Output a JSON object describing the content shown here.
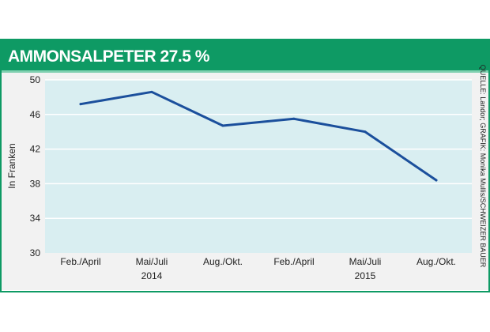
{
  "colors": {
    "header_bg": "#0e9a64",
    "header_accent": "#7fd0b0",
    "header_text": "#ffffff",
    "plot_bg": "#d9eef1",
    "panel_bg": "#f2f2f2",
    "border": "#0e9a64",
    "grid": "#ffffff",
    "line": "#1b4f9c"
  },
  "source_note": "QUELLE: Landor; GRAFIK: Monika Mullis/SCHWEIZER BAUER",
  "chart_data": {
    "type": "line",
    "title": "AMMONSALPETER 27.5 %",
    "ylabel": "In Franken",
    "xlabel": "",
    "ylim": [
      30,
      50
    ],
    "yticks": [
      30,
      34,
      38,
      42,
      46,
      50
    ],
    "grid": true,
    "categories": [
      "Feb./April",
      "Mai/Juli",
      "Aug./Okt.",
      "Feb./April",
      "Mai/Juli",
      "Aug./Okt."
    ],
    "groups": [
      {
        "label": "2014",
        "center_index": 1
      },
      {
        "label": "2015",
        "center_index": 4
      }
    ],
    "series": [
      {
        "values": [
          47.2,
          48.6,
          44.7,
          45.5,
          44.0,
          38.4
        ]
      }
    ]
  }
}
